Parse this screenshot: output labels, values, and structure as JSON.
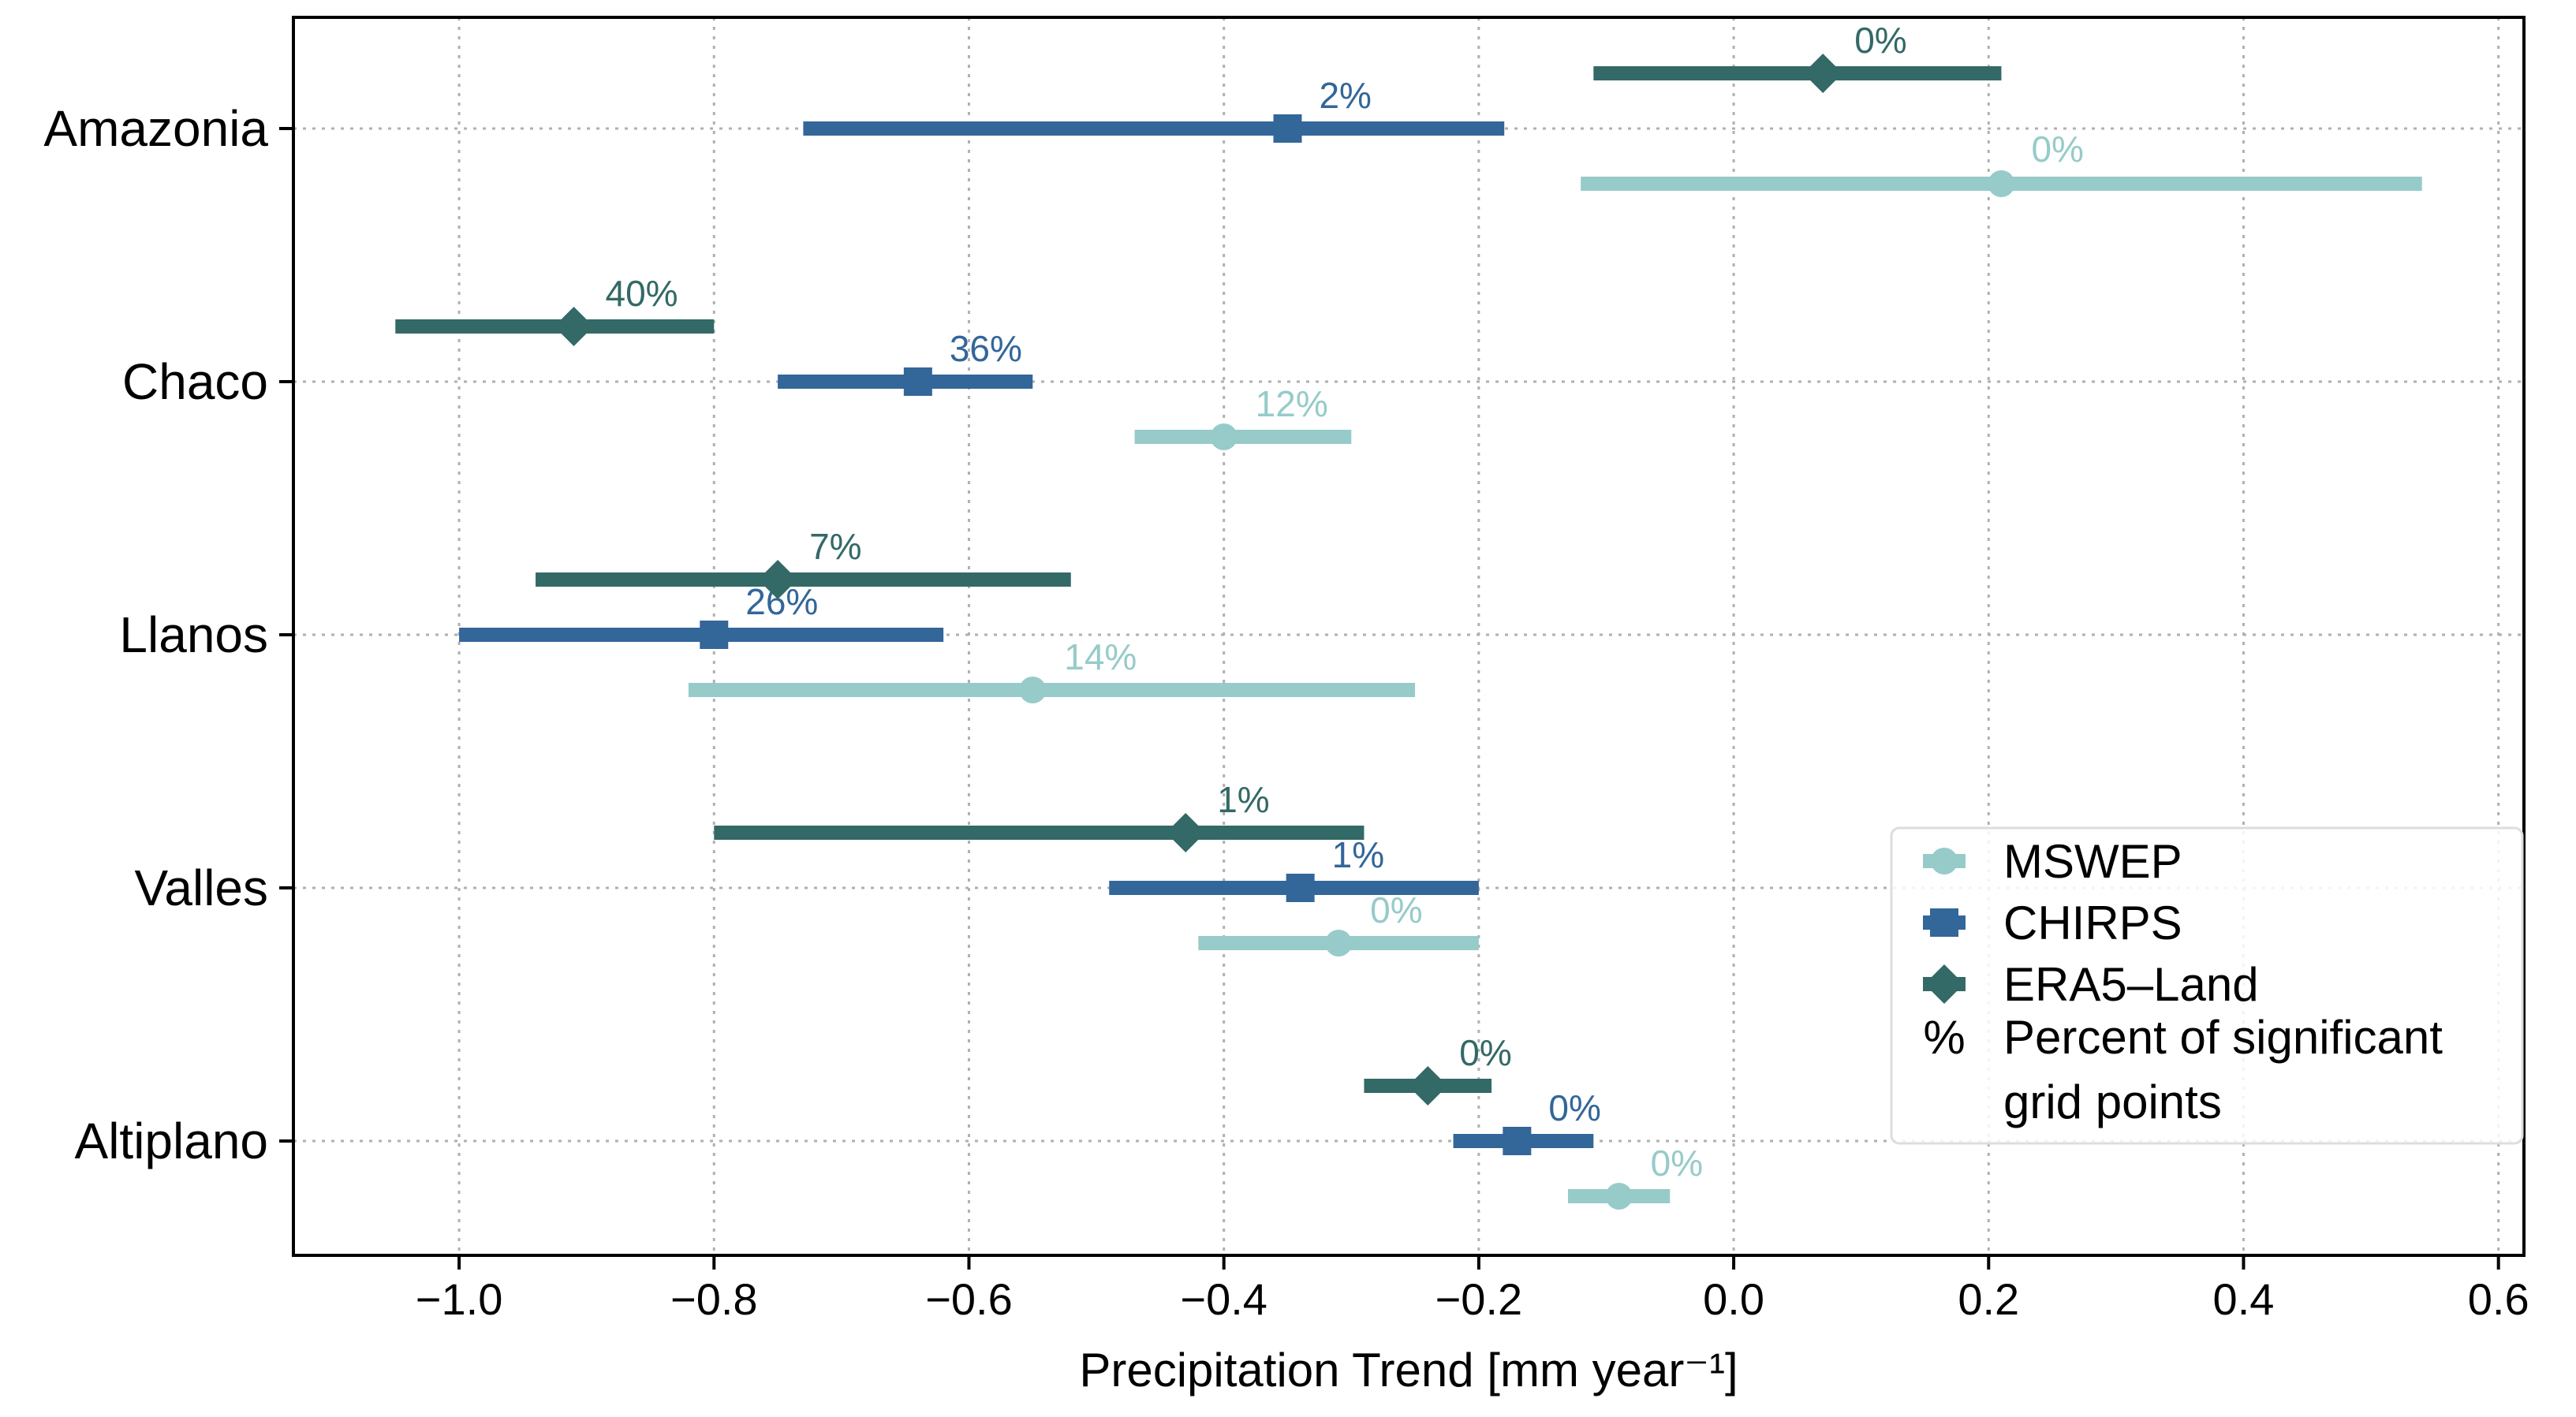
{
  "chart_data": {
    "type": "errorbar",
    "xlabel": "Precipitation Trend [mm year⁻¹]",
    "xlim": [
      -1.13,
      0.62
    ],
    "xticks": [
      -1.0,
      -0.8,
      -0.6,
      -0.4,
      -0.2,
      0.0,
      0.2,
      0.4,
      0.6
    ],
    "xtick_labels": [
      "−1.0",
      "−0.8",
      "−0.6",
      "−0.4",
      "−0.2",
      "0.0",
      "0.2",
      "0.4",
      "0.6"
    ],
    "grid": true,
    "legend_position": "lower-right",
    "regions": [
      "Amazonia",
      "Chaco",
      "Llanos",
      "Valles",
      "Altiplano"
    ],
    "series": [
      {
        "name": "MSWEP",
        "color": "#96cbc9",
        "marker": "circle",
        "data": [
          {
            "region": "Amazonia",
            "value": 0.21,
            "low": -0.12,
            "high": 0.54,
            "pct": "0%",
            "large_label": true
          },
          {
            "region": "Chaco",
            "value": -0.4,
            "low": -0.47,
            "high": -0.3,
            "pct": "12%"
          },
          {
            "region": "Llanos",
            "value": -0.55,
            "low": -0.82,
            "high": -0.25,
            "pct": "14%"
          },
          {
            "region": "Valles",
            "value": -0.31,
            "low": -0.42,
            "high": -0.2,
            "pct": "0%"
          },
          {
            "region": "Altiplano",
            "value": -0.09,
            "low": -0.13,
            "high": -0.05,
            "pct": "0%"
          }
        ]
      },
      {
        "name": "CHIRPS",
        "color": "#336699",
        "marker": "square",
        "data": [
          {
            "region": "Amazonia",
            "value": -0.35,
            "low": -0.73,
            "high": -0.18,
            "pct": "2%"
          },
          {
            "region": "Chaco",
            "value": -0.64,
            "low": -0.75,
            "high": -0.55,
            "pct": "36%"
          },
          {
            "region": "Llanos",
            "value": -0.8,
            "low": -1.0,
            "high": -0.62,
            "pct": "26%"
          },
          {
            "region": "Valles",
            "value": -0.34,
            "low": -0.49,
            "high": -0.2,
            "pct": "1%"
          },
          {
            "region": "Altiplano",
            "value": -0.17,
            "low": -0.22,
            "high": -0.11,
            "pct": "0%"
          }
        ]
      },
      {
        "name": "ERA5–Land",
        "color": "#336966",
        "marker": "diamond",
        "data": [
          {
            "region": "Amazonia",
            "value": 0.07,
            "low": -0.11,
            "high": 0.21,
            "pct": "0%"
          },
          {
            "region": "Chaco",
            "value": -0.91,
            "low": -1.05,
            "high": -0.8,
            "pct": "40%"
          },
          {
            "region": "Llanos",
            "value": -0.75,
            "low": -0.94,
            "high": -0.52,
            "pct": "7%"
          },
          {
            "region": "Valles",
            "value": -0.43,
            "low": -0.8,
            "high": -0.29,
            "pct": "1%"
          },
          {
            "region": "Altiplano",
            "value": -0.24,
            "low": -0.29,
            "high": -0.19,
            "pct": "0%"
          }
        ]
      }
    ],
    "legend": {
      "entries": [
        "MSWEP",
        "CHIRPS",
        "ERA5–Land"
      ],
      "pct_symbol": "%",
      "pct_text_line1": "Percent of significant",
      "pct_text_line2": "grid points"
    }
  }
}
